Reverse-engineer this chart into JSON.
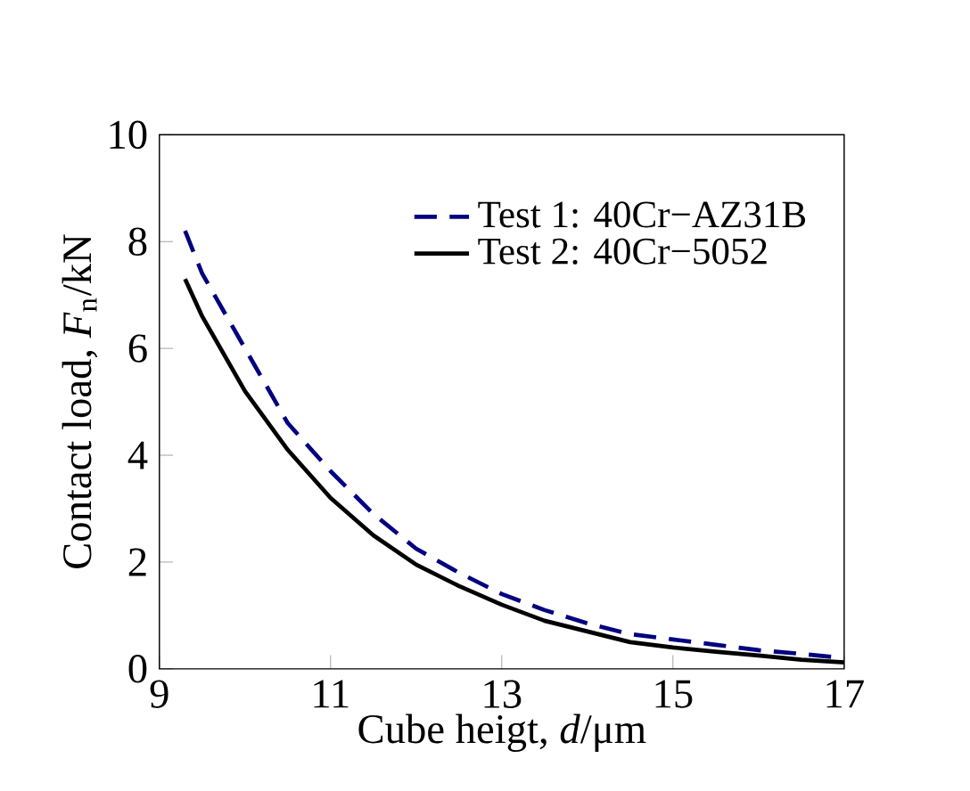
{
  "chart_data": {
    "type": "line",
    "xlabel": "Cube heigt, *d*/μm",
    "ylabel": "Contact load, *F*$_{n}$/kN",
    "xlim": [
      9,
      17
    ],
    "ylim": [
      0,
      10
    ],
    "xticks": [
      9,
      11,
      13,
      15,
      17
    ],
    "yticks": [
      0,
      2,
      4,
      6,
      8,
      10
    ],
    "legend": "top right",
    "grid": false,
    "series": [
      {
        "name": "Test 1: 40Cr−AZ31B",
        "color": "#000080",
        "line_style": "dashed",
        "x": [
          9.3,
          9.5,
          10,
          10.5,
          11,
          11.5,
          12,
          12.5,
          13,
          13.5,
          14,
          14.5,
          15,
          15.5,
          16,
          16.5,
          17
        ],
        "values": [
          8.2,
          7.4,
          6.0,
          4.6,
          3.7,
          2.9,
          2.25,
          1.8,
          1.4,
          1.1,
          0.85,
          0.65,
          0.55,
          0.45,
          0.35,
          0.28,
          0.2
        ]
      },
      {
        "name": "Test 2: 40Cr−5052",
        "color": "#000000",
        "line_style": "solid",
        "x": [
          9.3,
          9.5,
          10,
          10.5,
          11,
          11.5,
          12,
          12.5,
          13,
          13.5,
          14,
          14.5,
          15,
          15.5,
          16,
          16.5,
          17
        ],
        "values": [
          7.3,
          6.6,
          5.2,
          4.1,
          3.2,
          2.5,
          1.95,
          1.55,
          1.2,
          0.9,
          0.7,
          0.5,
          0.4,
          0.32,
          0.25,
          0.17,
          0.12
        ]
      }
    ]
  }
}
